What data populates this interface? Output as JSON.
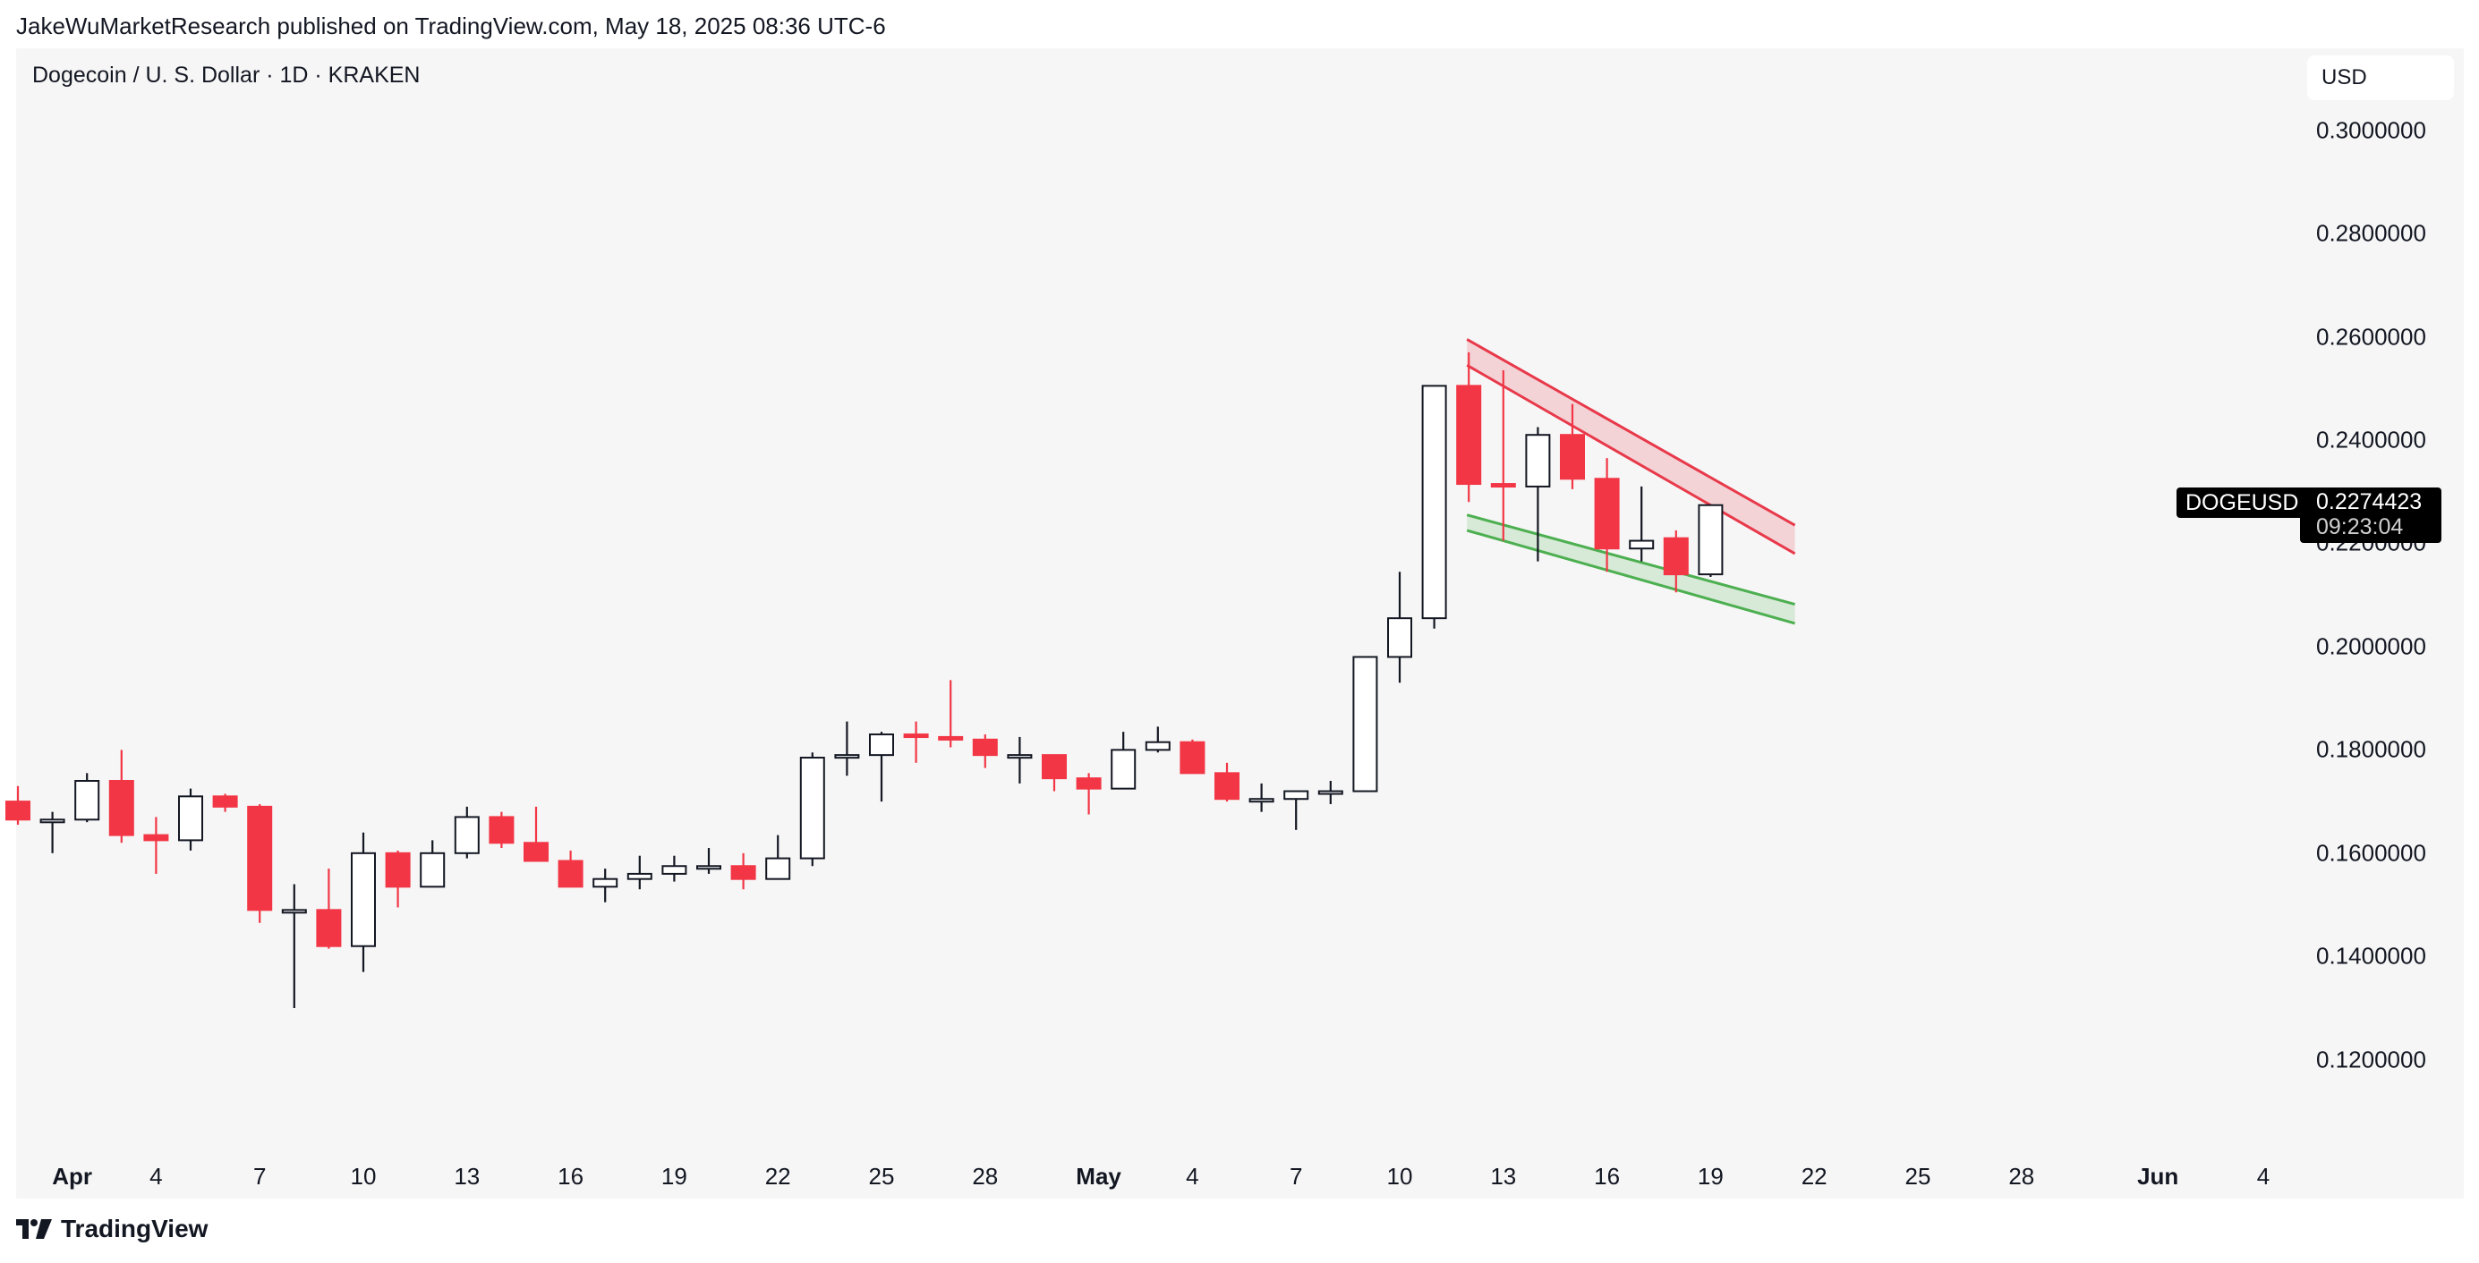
{
  "header": {
    "published": "JakeWuMarketResearch published on TradingView.com, May 18, 2025 08:36 UTC-6"
  },
  "symbol": {
    "title": "Dogecoin / U. S. Dollar · 1D · KRAKEN",
    "ticker": "DOGEUSD"
  },
  "currency_button": "USD",
  "last_price": {
    "value": "0.2274423",
    "countdown": "09:23:04"
  },
  "footer": {
    "brand": "TradingView"
  },
  "colors": {
    "up": "#ffffff",
    "down": "#f23645",
    "wick": "#131722",
    "resistance": "#e8394a",
    "support": "#4caf50",
    "panel": "#f6f6f6"
  },
  "chart_data": {
    "type": "candlestick",
    "x_labels": [
      "Apr",
      "4",
      "7",
      "10",
      "13",
      "16",
      "19",
      "22",
      "25",
      "28",
      "May",
      "4",
      "7",
      "10",
      "13",
      "16",
      "19",
      "22",
      "25",
      "28",
      "Jun",
      "4"
    ],
    "y_ticks": [
      "0.3000000",
      "0.2800000",
      "0.2600000",
      "0.2400000",
      "0.2200000",
      "0.2000000",
      "0.1800000",
      "0.1600000",
      "0.1400000",
      "0.1200000"
    ],
    "ylim": [
      0.1,
      0.31
    ],
    "candles": [
      {
        "date": "Mar 31",
        "o": 0.17,
        "h": 0.173,
        "l": 0.1655,
        "c": 0.1665
      },
      {
        "date": "Apr 1",
        "o": 0.1665,
        "h": 0.168,
        "l": 0.16,
        "c": 0.1665
      },
      {
        "date": "Apr 2",
        "o": 0.1665,
        "h": 0.1755,
        "l": 0.166,
        "c": 0.174
      },
      {
        "date": "Apr 3",
        "o": 0.174,
        "h": 0.18,
        "l": 0.162,
        "c": 0.1635
      },
      {
        "date": "Apr 4",
        "o": 0.1635,
        "h": 0.167,
        "l": 0.156,
        "c": 0.1625
      },
      {
        "date": "Apr 5",
        "o": 0.1625,
        "h": 0.1725,
        "l": 0.1605,
        "c": 0.171
      },
      {
        "date": "Apr 6",
        "o": 0.171,
        "h": 0.1715,
        "l": 0.168,
        "c": 0.169
      },
      {
        "date": "Apr 7",
        "o": 0.169,
        "h": 0.1695,
        "l": 0.1465,
        "c": 0.149
      },
      {
        "date": "Apr 8",
        "o": 0.149,
        "h": 0.154,
        "l": 0.13,
        "c": 0.149
      },
      {
        "date": "Apr 9",
        "o": 0.149,
        "h": 0.157,
        "l": 0.1415,
        "c": 0.142
      },
      {
        "date": "Apr 10",
        "o": 0.142,
        "h": 0.164,
        "l": 0.137,
        "c": 0.16
      },
      {
        "date": "Apr 11",
        "o": 0.16,
        "h": 0.1605,
        "l": 0.1495,
        "c": 0.1535
      },
      {
        "date": "Apr 12",
        "o": 0.1535,
        "h": 0.1625,
        "l": 0.1535,
        "c": 0.16
      },
      {
        "date": "Apr 13",
        "o": 0.16,
        "h": 0.169,
        "l": 0.159,
        "c": 0.167
      },
      {
        "date": "Apr 14",
        "o": 0.167,
        "h": 0.168,
        "l": 0.161,
        "c": 0.162
      },
      {
        "date": "Apr 15",
        "o": 0.162,
        "h": 0.169,
        "l": 0.1585,
        "c": 0.1585
      },
      {
        "date": "Apr 16",
        "o": 0.1585,
        "h": 0.1605,
        "l": 0.1535,
        "c": 0.1535
      },
      {
        "date": "Apr 17",
        "o": 0.1535,
        "h": 0.157,
        "l": 0.1505,
        "c": 0.155
      },
      {
        "date": "Apr 18",
        "o": 0.155,
        "h": 0.1595,
        "l": 0.153,
        "c": 0.156
      },
      {
        "date": "Apr 19",
        "o": 0.156,
        "h": 0.1595,
        "l": 0.1545,
        "c": 0.1575
      },
      {
        "date": "Apr 20",
        "o": 0.1575,
        "h": 0.161,
        "l": 0.156,
        "c": 0.1575
      },
      {
        "date": "Apr 21",
        "o": 0.1575,
        "h": 0.16,
        "l": 0.153,
        "c": 0.155
      },
      {
        "date": "Apr 22",
        "o": 0.155,
        "h": 0.1635,
        "l": 0.155,
        "c": 0.159
      },
      {
        "date": "Apr 23",
        "o": 0.159,
        "h": 0.1795,
        "l": 0.1575,
        "c": 0.1785
      },
      {
        "date": "Apr 24",
        "o": 0.1785,
        "h": 0.1855,
        "l": 0.175,
        "c": 0.179
      },
      {
        "date": "Apr 25",
        "o": 0.179,
        "h": 0.1835,
        "l": 0.17,
        "c": 0.183
      },
      {
        "date": "Apr 26",
        "o": 0.183,
        "h": 0.1855,
        "l": 0.1775,
        "c": 0.1825
      },
      {
        "date": "Apr 27",
        "o": 0.1825,
        "h": 0.1935,
        "l": 0.1805,
        "c": 0.182
      },
      {
        "date": "Apr 28",
        "o": 0.182,
        "h": 0.183,
        "l": 0.1765,
        "c": 0.179
      },
      {
        "date": "Apr 29",
        "o": 0.179,
        "h": 0.1825,
        "l": 0.1735,
        "c": 0.179
      },
      {
        "date": "Apr 30",
        "o": 0.179,
        "h": 0.179,
        "l": 0.172,
        "c": 0.1745
      },
      {
        "date": "May 1",
        "o": 0.1745,
        "h": 0.1755,
        "l": 0.1675,
        "c": 0.1725
      },
      {
        "date": "May 2",
        "o": 0.1725,
        "h": 0.1835,
        "l": 0.1725,
        "c": 0.18
      },
      {
        "date": "May 3",
        "o": 0.18,
        "h": 0.1845,
        "l": 0.1795,
        "c": 0.1815
      },
      {
        "date": "May 4",
        "o": 0.1815,
        "h": 0.182,
        "l": 0.1755,
        "c": 0.1755
      },
      {
        "date": "May 5",
        "o": 0.1755,
        "h": 0.1775,
        "l": 0.17,
        "c": 0.1705
      },
      {
        "date": "May 6",
        "o": 0.1705,
        "h": 0.1735,
        "l": 0.168,
        "c": 0.1705
      },
      {
        "date": "May 7",
        "o": 0.1705,
        "h": 0.172,
        "l": 0.1645,
        "c": 0.172
      },
      {
        "date": "May 8",
        "o": 0.172,
        "h": 0.174,
        "l": 0.1695,
        "c": 0.172
      },
      {
        "date": "May 9",
        "o": 0.172,
        "h": 0.198,
        "l": 0.172,
        "c": 0.198
      },
      {
        "date": "May 10",
        "o": 0.198,
        "h": 0.2145,
        "l": 0.193,
        "c": 0.2055
      },
      {
        "date": "May 11",
        "o": 0.2055,
        "h": 0.2505,
        "l": 0.2035,
        "c": 0.2505
      },
      {
        "date": "May 12",
        "o": 0.2505,
        "h": 0.257,
        "l": 0.228,
        "c": 0.2315
      },
      {
        "date": "May 13",
        "o": 0.2315,
        "h": 0.2535,
        "l": 0.2205,
        "c": 0.231
      },
      {
        "date": "May 14",
        "o": 0.231,
        "h": 0.2425,
        "l": 0.2165,
        "c": 0.241
      },
      {
        "date": "May 15",
        "o": 0.241,
        "h": 0.247,
        "l": 0.2305,
        "c": 0.2325
      },
      {
        "date": "May 16",
        "o": 0.2325,
        "h": 0.2365,
        "l": 0.2145,
        "c": 0.219
      },
      {
        "date": "May 17",
        "o": 0.219,
        "h": 0.231,
        "l": 0.2165,
        "c": 0.2205
      },
      {
        "date": "May 18",
        "o": 0.221,
        "h": 0.2225,
        "l": 0.2105,
        "c": 0.214
      },
      {
        "date": "May 19",
        "o": 0.214,
        "h": 0.2275,
        "l": 0.2135,
        "c": 0.2274
      }
    ],
    "annotations": [
      {
        "type": "channel",
        "name": "resistance",
        "from_date": "May 12",
        "to_date": "May 21",
        "from": [
          0.2595,
          0.2545
        ],
        "to": [
          0.2235,
          0.218
        ]
      },
      {
        "type": "channel",
        "name": "support",
        "from_date": "May 12",
        "to_date": "May 21",
        "from": [
          0.2255,
          0.2225
        ],
        "to": [
          0.2082,
          0.2045
        ]
      }
    ]
  }
}
